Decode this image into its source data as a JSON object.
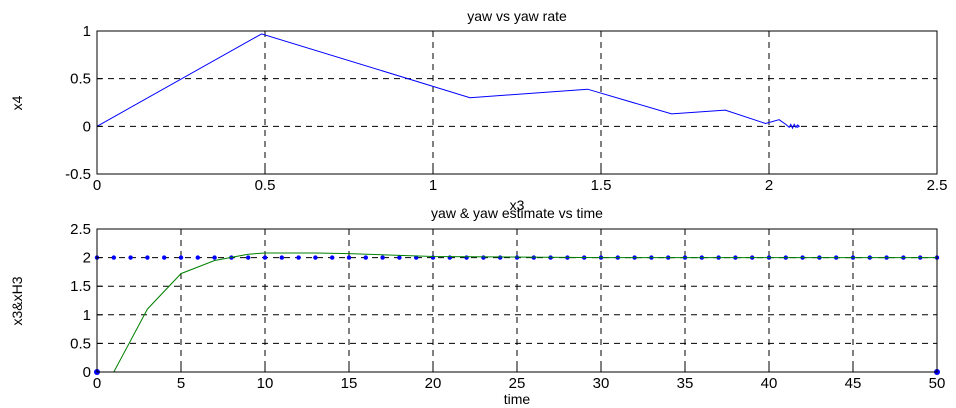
{
  "chart_data": [
    {
      "type": "line",
      "title": "yaw vs yaw rate",
      "xlabel": "x3",
      "ylabel": "x4",
      "xlim": [
        0,
        2.5
      ],
      "ylim": [
        -0.5,
        1
      ],
      "xticks": [
        "0",
        "0.5",
        "1",
        "1.5",
        "2",
        "2.5"
      ],
      "yticks": [
        "-0.5",
        "0",
        "0.5",
        "1"
      ],
      "xtick_values": [
        0,
        0.5,
        1,
        1.5,
        2,
        2.5
      ],
      "ytick_values": [
        -0.5,
        0,
        0.5,
        1
      ],
      "grid": true,
      "series": [
        {
          "color": "#0000ff",
          "x": [
            0,
            0.49,
            1.11,
            1.46,
            1.71,
            1.87,
            1.99,
            2.03,
            2.05,
            2.06,
            2.065,
            2.07,
            2.075,
            2.08,
            2.085,
            2.09,
            2.085,
            2.08
          ],
          "y": [
            0,
            0.97,
            0.3,
            0.39,
            0.13,
            0.17,
            0.03,
            0.07,
            0.02,
            -0.01,
            0.02,
            -0.02,
            0.02,
            -0.01,
            0.015,
            0,
            -0.01,
            0.005
          ]
        }
      ]
    },
    {
      "type": "line",
      "title": "yaw & yaw estimate vs time",
      "xlabel": "time",
      "ylabel": "x3&xH3",
      "xlim": [
        0,
        50
      ],
      "ylim": [
        0,
        2.5
      ],
      "xticks": [
        "0",
        "5",
        "10",
        "15",
        "20",
        "25",
        "30",
        "35",
        "40",
        "45",
        "50"
      ],
      "yticks": [
        "0",
        "0.5",
        "1",
        "1.5",
        "2",
        "2.5"
      ],
      "xtick_values": [
        0,
        5,
        10,
        15,
        20,
        25,
        30,
        35,
        40,
        45,
        50
      ],
      "ytick_values": [
        0,
        0.5,
        1,
        1.5,
        2,
        2.5
      ],
      "grid": true,
      "series": [
        {
          "color": "#0000ff",
          "style": "dotted",
          "x": [
            0,
            0.1,
            0.2,
            50
          ],
          "y": [
            0,
            2,
            2,
            2
          ]
        },
        {
          "color": "#008000",
          "style": "solid",
          "x": [
            0,
            1,
            3,
            5,
            7,
            9,
            10,
            13,
            15,
            20,
            30,
            40,
            50
          ],
          "y": [
            0,
            0,
            1.1,
            1.72,
            1.95,
            2.06,
            2.08,
            2.08,
            2.07,
            2.02,
            2.0,
            2.0,
            2.0
          ]
        }
      ]
    }
  ]
}
